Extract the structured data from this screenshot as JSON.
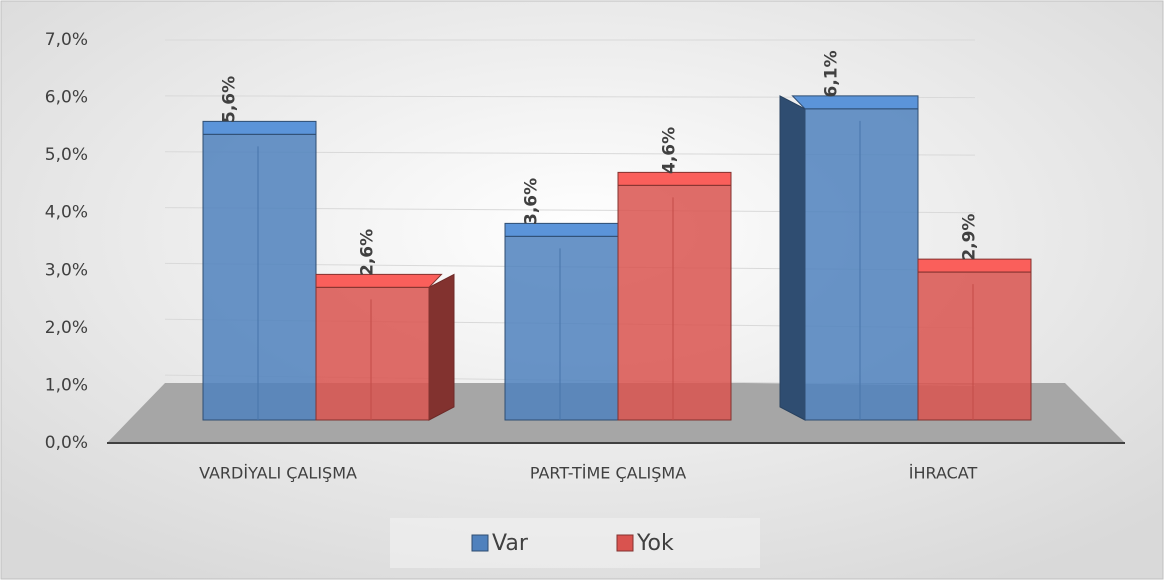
{
  "chart_data": {
    "type": "bar3d",
    "categories": [
      "VARDİYALI ÇALIŞMA",
      "PART-TİME ÇALIŞMA",
      "İHRACAT"
    ],
    "series": [
      {
        "name": "Var",
        "color": "#4f81bd",
        "values": [
          5.6,
          3.6,
          6.1
        ],
        "value_labels": [
          "5,6%",
          "3,6%",
          "6,1%"
        ]
      },
      {
        "name": "Yok",
        "color": "#d9534f",
        "values": [
          2.6,
          4.6,
          2.9
        ],
        "value_labels": [
          "2,6%",
          "4,6%",
          "2,9%"
        ]
      }
    ],
    "ylim": [
      0,
      7
    ],
    "yticks": [
      {
        "value": 0,
        "label": "0,0%"
      },
      {
        "value": 1,
        "label": "1,0%"
      },
      {
        "value": 2,
        "label": "2,0%"
      },
      {
        "value": 3,
        "label": "3,0%"
      },
      {
        "value": 4,
        "label": "4,0%"
      },
      {
        "value": 5,
        "label": "5,0%"
      },
      {
        "value": 6,
        "label": "6,0%"
      },
      {
        "value": 7,
        "label": "7,0%"
      }
    ],
    "grid": true,
    "legend": "bottom"
  }
}
